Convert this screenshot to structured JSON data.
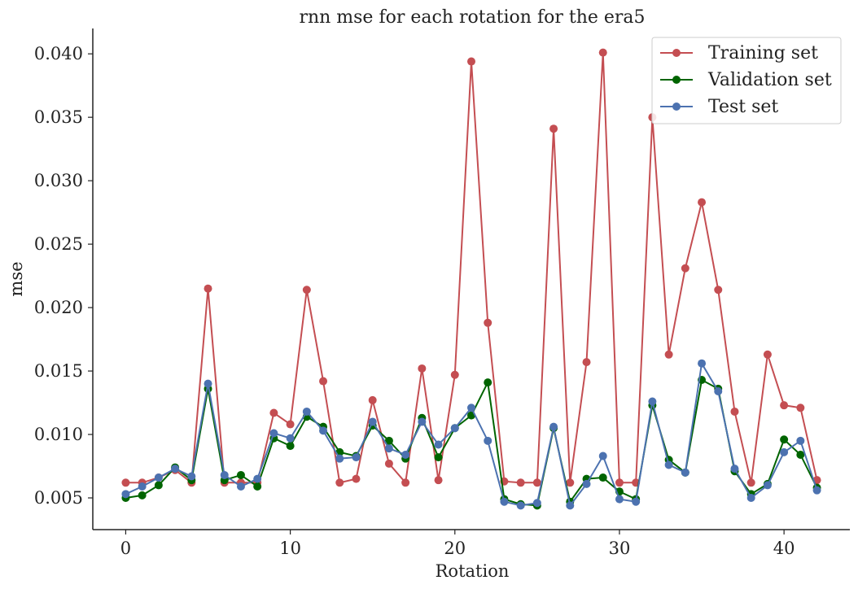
{
  "chart_data": {
    "type": "line",
    "title": "rnn mse for each rotation for the era5",
    "xlabel": "Rotation",
    "ylabel": "mse",
    "xlim": [
      -2,
      44
    ],
    "ylim": [
      0.0025,
      0.042
    ],
    "xticks": [
      0,
      10,
      20,
      30,
      40
    ],
    "xtick_labels": [
      "0",
      "10",
      "20",
      "30",
      "40"
    ],
    "yticks": [
      0.005,
      0.01,
      0.015,
      0.02,
      0.025,
      0.03,
      0.035,
      0.04
    ],
    "ytick_labels": [
      "0.005",
      "0.010",
      "0.015",
      "0.020",
      "0.025",
      "0.030",
      "0.035",
      "0.040"
    ],
    "grid": false,
    "legend_position": "top-right",
    "x": [
      0,
      1,
      2,
      3,
      4,
      5,
      6,
      7,
      8,
      9,
      10,
      11,
      12,
      13,
      14,
      15,
      16,
      17,
      18,
      19,
      20,
      21,
      22,
      23,
      24,
      25,
      26,
      27,
      28,
      29,
      30,
      31,
      32,
      33,
      34,
      35,
      36,
      37,
      38,
      39,
      40,
      41,
      42
    ],
    "series": [
      {
        "name": "Training set",
        "color": "#c44e52",
        "values": [
          0.0062,
          0.0062,
          0.0066,
          0.0072,
          0.0062,
          0.0215,
          0.0062,
          0.0062,
          0.0062,
          0.0117,
          0.0108,
          0.0214,
          0.0142,
          0.0062,
          0.0065,
          0.0127,
          0.0077,
          0.0062,
          0.0152,
          0.0064,
          0.0147,
          0.0394,
          0.0188,
          0.0063,
          0.0062,
          0.0062,
          0.0341,
          0.0062,
          0.0157,
          0.0401,
          0.0062,
          0.0062,
          0.035,
          0.0163,
          0.0231,
          0.0283,
          0.0214,
          0.0118,
          0.0062,
          0.0163,
          0.0123,
          0.0121,
          0.0064
        ]
      },
      {
        "name": "Validation set",
        "color": "#006400",
        "values": [
          0.005,
          0.0052,
          0.006,
          0.0074,
          0.0064,
          0.0136,
          0.0064,
          0.0068,
          0.0059,
          0.0097,
          0.0091,
          0.0114,
          0.0106,
          0.0086,
          0.0083,
          0.0107,
          0.0095,
          0.0081,
          0.0113,
          0.0082,
          0.0105,
          0.0115,
          0.0141,
          0.0049,
          0.0045,
          0.0044,
          0.0105,
          0.0047,
          0.0065,
          0.0066,
          0.0055,
          0.0049,
          0.0123,
          0.008,
          0.007,
          0.0143,
          0.0136,
          0.0071,
          0.0053,
          0.0061,
          0.0096,
          0.0084,
          0.0058
        ]
      },
      {
        "name": "Test set",
        "color": "#4c72b0",
        "values": [
          0.0053,
          0.0059,
          0.0066,
          0.0073,
          0.0067,
          0.014,
          0.0068,
          0.0059,
          0.0065,
          0.0101,
          0.0097,
          0.0118,
          0.0103,
          0.0081,
          0.0082,
          0.011,
          0.0089,
          0.0084,
          0.011,
          0.0092,
          0.0105,
          0.0121,
          0.0095,
          0.0047,
          0.0044,
          0.0046,
          0.0106,
          0.0044,
          0.0061,
          0.0083,
          0.0049,
          0.0047,
          0.0126,
          0.0076,
          0.007,
          0.0156,
          0.0134,
          0.0073,
          0.005,
          0.006,
          0.0086,
          0.0095,
          0.0056
        ]
      }
    ]
  }
}
